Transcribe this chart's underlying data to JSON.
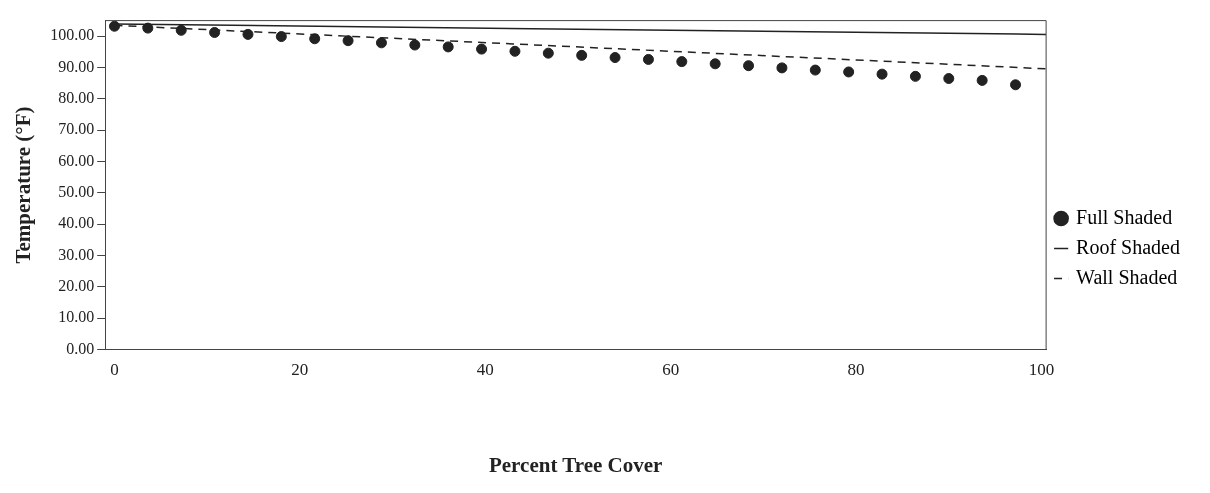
{
  "chart_data": {
    "type": "line",
    "xlabel": "Percent Tree Cover",
    "ylabel": "Temperature (°F)",
    "xlim": [
      -1,
      100.5
    ],
    "xticks": [
      0,
      20,
      40,
      60,
      80,
      100
    ],
    "ylim": [
      0,
      105
    ],
    "yticks": [
      {
        "value": 0,
        "label": "0.00"
      },
      {
        "value": 10,
        "label": "10.00"
      },
      {
        "value": 20,
        "label": "20.00"
      },
      {
        "value": 30,
        "label": "30.00"
      },
      {
        "value": 40,
        "label": "40.00"
      },
      {
        "value": 50,
        "label": "50.00"
      },
      {
        "value": 60,
        "label": "60.00"
      },
      {
        "value": 70,
        "label": "70.00"
      },
      {
        "value": 80,
        "label": "80.00"
      },
      {
        "value": 90,
        "label": "90.00"
      },
      {
        "value": 100,
        "label": "100.00"
      }
    ],
    "grid": false,
    "legend": "right",
    "series": [
      {
        "name": "Full Shaded",
        "type": "scatter",
        "marker": "circle",
        "color": "#222222",
        "x": [
          0,
          3.6,
          7.2,
          10.8,
          14.4,
          18,
          21.6,
          25.2,
          28.8,
          32.4,
          36,
          39.6,
          43.2,
          46.8,
          50.4,
          54,
          57.6,
          61.2,
          64.8,
          68.4,
          72,
          75.6,
          79.2,
          82.8,
          86.4,
          90,
          93.6,
          97.2
        ],
        "values": [
          103.2,
          102.6,
          101.9,
          101.2,
          100.6,
          99.9,
          99.2,
          98.6,
          97.9,
          97.2,
          96.6,
          95.9,
          95.2,
          94.6,
          93.9,
          93.2,
          92.6,
          91.9,
          91.2,
          90.6,
          89.9,
          89.2,
          88.6,
          87.9,
          87.2,
          86.5,
          85.9,
          84.5
        ]
      },
      {
        "name": "Roof Shaded",
        "type": "line",
        "line_style": "solid",
        "marker": "none",
        "color": "#222222",
        "x": [
          0,
          100.5
        ],
        "values": [
          103.9,
          100.6
        ]
      },
      {
        "name": "Wall Shaded",
        "type": "line",
        "line_style": "dashed",
        "marker": "none",
        "color": "#222222",
        "x": [
          0,
          100.5
        ],
        "values": [
          103.5,
          89.6
        ]
      }
    ]
  }
}
